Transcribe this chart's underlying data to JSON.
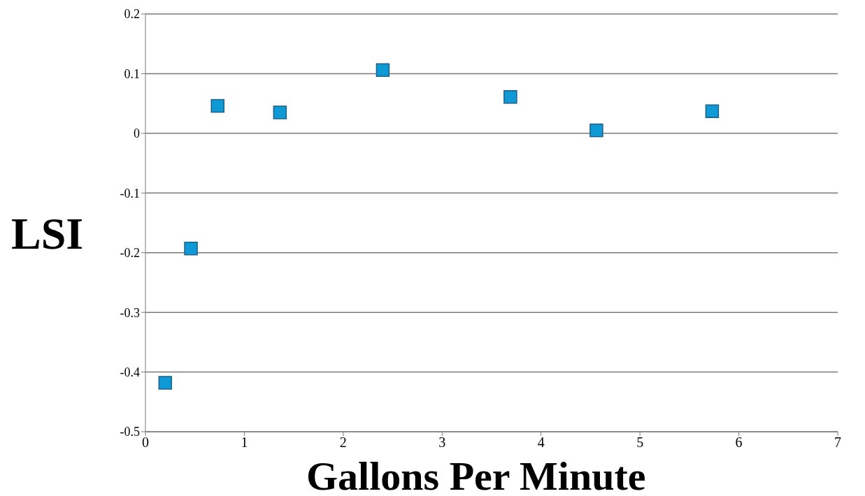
{
  "chart_data": {
    "type": "scatter",
    "xlabel": "Gallons Per Minute",
    "ylabel": "LSI",
    "x": [
      0.2,
      0.46,
      0.73,
      1.36,
      2.4,
      3.69,
      4.56,
      5.73
    ],
    "series": [
      {
        "color": "#0f9ad6",
        "values": [
          -0.418,
          -0.193,
          0.046,
          0.035,
          0.106,
          0.061,
          0.005,
          0.037
        ]
      }
    ],
    "xlim": [
      0,
      7
    ],
    "xticks": [
      0,
      1,
      2,
      3,
      4,
      5,
      6,
      7
    ],
    "ylim": [
      -0.5,
      0.2
    ],
    "yticks": [
      -0.5,
      -0.4,
      -0.3,
      -0.2,
      -0.1,
      0,
      0.1,
      0.2
    ],
    "grid": "y",
    "marker": "square"
  }
}
